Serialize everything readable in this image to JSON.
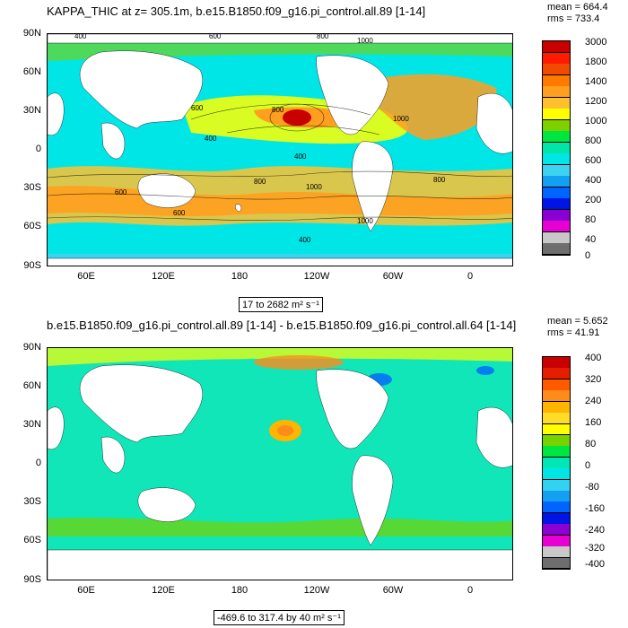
{
  "panel1": {
    "title": "KAPPA_THIC at z= 305.1m, b.e15.B1850.f09_g16.pi_control.all.89 [1-14]",
    "mean": "mean = 664.4",
    "rms": "rms = 733.4",
    "range": "17 to 2682 m² s⁻¹",
    "legend_labels": [
      "3000",
      "1800",
      "1400",
      "1200",
      "1000",
      "800",
      "600",
      "400",
      "200",
      "80",
      "40",
      "0"
    ],
    "legend_colors": [
      "#c80000",
      "#ff1a00",
      "#f04b00",
      "#ff7a00",
      "#ff9e1f",
      "#ffc030",
      "#ffff00",
      "#7ed000",
      "#00e640",
      "#00e6a8",
      "#00e6e6",
      "#3dd2f0",
      "#14a0f0",
      "#0064ff",
      "#0014e6",
      "#8a00d2",
      "#e600d2",
      "#c8c8c8",
      "#6e6e6e"
    ],
    "contour_labels": [
      "400",
      "600",
      "800",
      "1000",
      "1000",
      "800",
      "600",
      "400",
      "400",
      "600",
      "800",
      "1000",
      "800",
      "400",
      "600",
      "1000"
    ]
  },
  "panel2": {
    "title": "b.e15.B1850.f09_g16.pi_control.all.89 [1-14] - b.e15.B1850.f09_g16.pi_control.all.64 [1-14]",
    "mean": "mean = 5.652",
    "rms": "rms = 41.91",
    "range": "-469.6 to 317.4 by 40 m² s⁻¹",
    "legend_labels": [
      "400",
      "320",
      "240",
      "160",
      "80",
      "0",
      "-80",
      "-160",
      "-240",
      "-320",
      "-400"
    ],
    "legend_colors": [
      "#c80000",
      "#e61e00",
      "#ff5a00",
      "#ff8c1a",
      "#ffb400",
      "#ffdc28",
      "#ffff00",
      "#78d200",
      "#00e640",
      "#00e6b4",
      "#00e6e6",
      "#32d2f0",
      "#14a0f0",
      "#0064ff",
      "#0014e6",
      "#8c00d2",
      "#e600d2",
      "#c8c8c8",
      "#6e6e6e"
    ]
  },
  "axes": {
    "lat_labels": [
      "90N",
      "60N",
      "30N",
      "0",
      "30S",
      "60S",
      "90S"
    ],
    "lon_labels": [
      "60E",
      "120E",
      "180",
      "120W",
      "60W",
      "0"
    ]
  },
  "colors": {
    "land": "#ffffff",
    "ocean_base": "#00e6e6",
    "ocean_diff": "#10e6b8"
  }
}
